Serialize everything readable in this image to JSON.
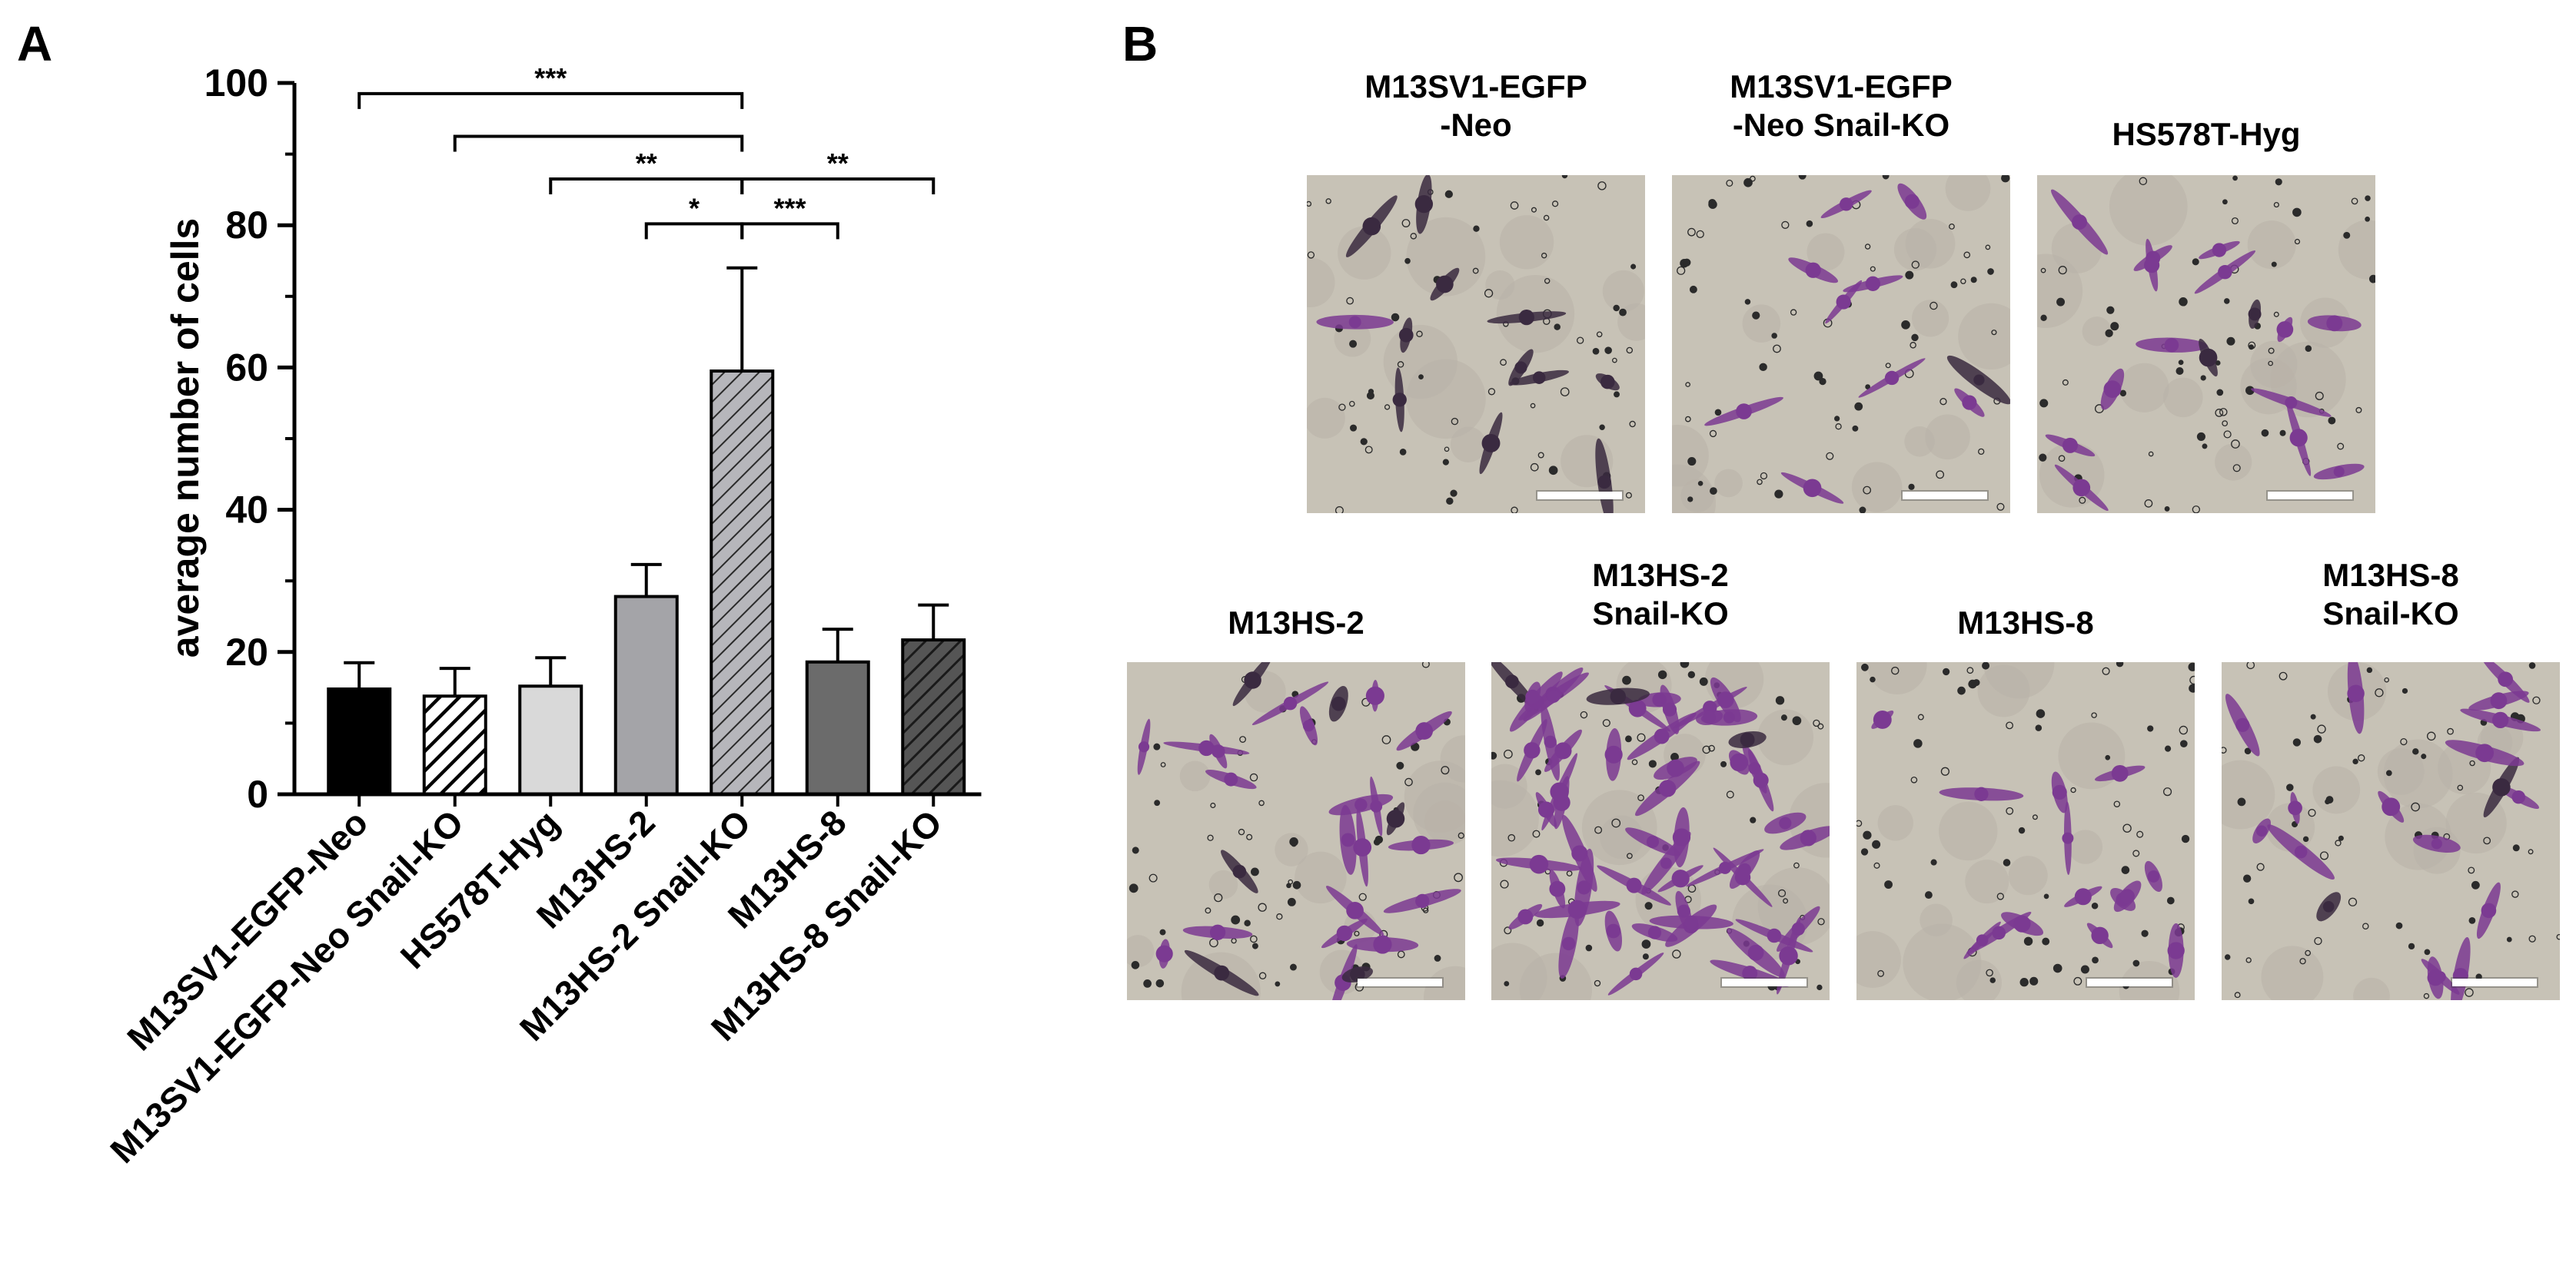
{
  "panels": {
    "a_letter": "A",
    "b_letter": "B"
  },
  "chart_data": {
    "type": "bar",
    "ylabel": "average number of cells",
    "ylim": [
      0,
      100
    ],
    "yticks": [
      0,
      20,
      40,
      60,
      80,
      100
    ],
    "categories": [
      "M13SV1-EGFP-Neo",
      "M13SV1-EGFP-Neo Snail-KO",
      "HS578T-Hyg",
      "M13HS-2",
      "M13HS-2 Snail-KO",
      "M13HS-8",
      "M13HS-8 Snail-KO"
    ],
    "values": [
      14.8,
      13.8,
      15.2,
      27.8,
      59.5,
      18.6,
      21.7
    ],
    "errors": [
      3.7,
      3.9,
      4.0,
      4.5,
      14.5,
      4.6,
      4.9
    ],
    "fill": [
      "#000000",
      "hatch",
      "#d9d9d9",
      "#a4a4a8",
      "hatch",
      "#6b6b6b",
      "hatch-dark"
    ],
    "significance": [
      {
        "from": 0,
        "to": 4,
        "level": 98.5,
        "label": "***"
      },
      {
        "from": 1,
        "to": 4,
        "level": 92.5,
        "label": ""
      },
      {
        "from": 2,
        "to": 4,
        "level": 86.5,
        "label": "**"
      },
      {
        "from": 4,
        "to": 6,
        "level": 86.5,
        "label": "**"
      },
      {
        "from": 3,
        "to": 4,
        "level": 80.2,
        "label": "*"
      },
      {
        "from": 4,
        "to": 5,
        "level": 80.2,
        "label": "***"
      }
    ]
  },
  "micrographs": [
    {
      "title_line1": "M13SV1-EGFP",
      "title_line2": "-Neo",
      "cell_count": 12,
      "purple_share": 0.25
    },
    {
      "title_line1": "M13SV1-EGFP",
      "title_line2": "-Neo Snail-KO",
      "cell_count": 10,
      "purple_share": 0.55
    },
    {
      "title_line1": "HS578T-Hyg",
      "title_line2": "",
      "cell_count": 16,
      "purple_share": 0.85
    },
    {
      "title_line1": "M13HS-2",
      "title_line2": "",
      "cell_count": 26,
      "purple_share": 0.9
    },
    {
      "title_line1": "M13HS-2",
      "title_line2": "Snail-KO",
      "cell_count": 55,
      "purple_share": 0.95
    },
    {
      "title_line1": "M13HS-8",
      "title_line2": "",
      "cell_count": 14,
      "purple_share": 0.9
    },
    {
      "title_line1": "M13HS-8",
      "title_line2": "Snail-KO",
      "cell_count": 18,
      "purple_share": 0.9
    }
  ],
  "colors": {
    "axis": "#000000",
    "cell_purple": "#7b3a92",
    "cell_dark": "#3a2a40",
    "background_tint": "#c7c2b6",
    "pore": "#2b2b2b"
  }
}
